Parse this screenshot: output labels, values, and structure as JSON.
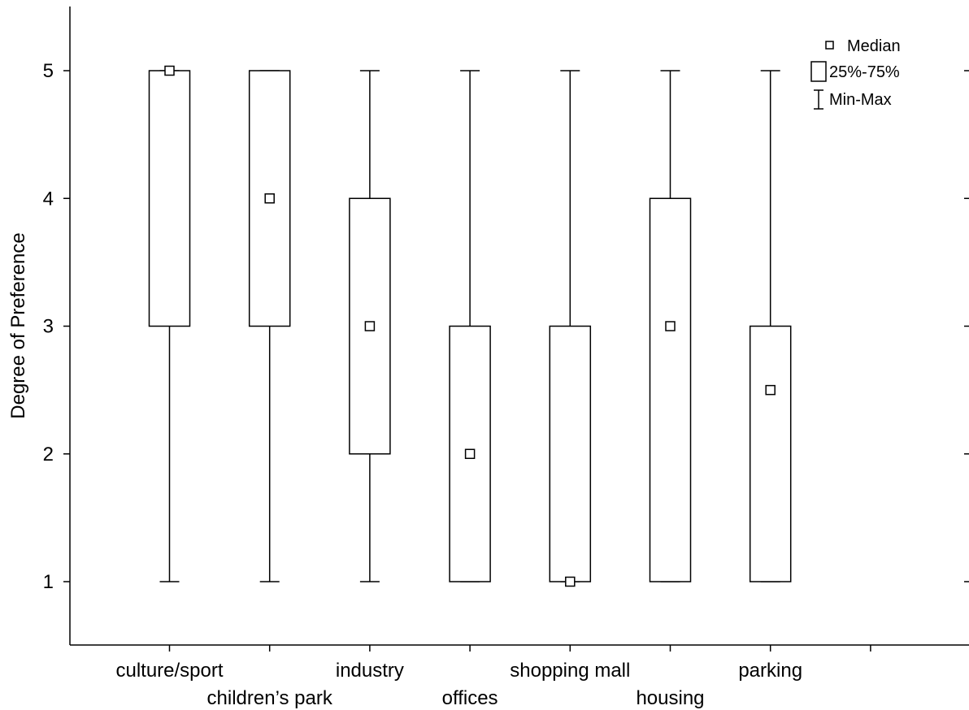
{
  "chart_data": {
    "type": "box",
    "title": "",
    "xlabel": "",
    "ylabel": "Degree of Preference",
    "ylim": [
      0.5,
      5.5
    ],
    "yticks": [
      "1",
      "2",
      "3",
      "4",
      "5"
    ],
    "categories": [
      "culture/sport",
      "children’s park",
      "industry",
      "offices",
      "shopping mall",
      "housing",
      "parking"
    ],
    "boxes": [
      {
        "category": "culture/sport",
        "min": 1,
        "q1": 3,
        "median": 5,
        "q3": 5,
        "max": 5
      },
      {
        "category": "children’s park",
        "min": 1,
        "q1": 3,
        "median": 4,
        "q3": 5,
        "max": 5
      },
      {
        "category": "industry",
        "min": 1,
        "q1": 2,
        "median": 3,
        "q3": 4,
        "max": 5
      },
      {
        "category": "offices",
        "min": 1,
        "q1": 1,
        "median": 2,
        "q3": 3,
        "max": 5
      },
      {
        "category": "shopping mall",
        "min": 1,
        "q1": 1,
        "median": 1,
        "q3": 3,
        "max": 5
      },
      {
        "category": "housing",
        "min": 1,
        "q1": 1,
        "median": 3,
        "q3": 4,
        "max": 5
      },
      {
        "category": "parking",
        "min": 1,
        "q1": 1,
        "median": 2.5,
        "q3": 3,
        "max": 5
      }
    ],
    "legend": {
      "placement": "top-right",
      "entries": [
        "Median",
        "25%-75%",
        "Min-Max"
      ]
    },
    "grid": false,
    "colors": {
      "stroke": "#000000",
      "background": "#ffffff"
    }
  }
}
